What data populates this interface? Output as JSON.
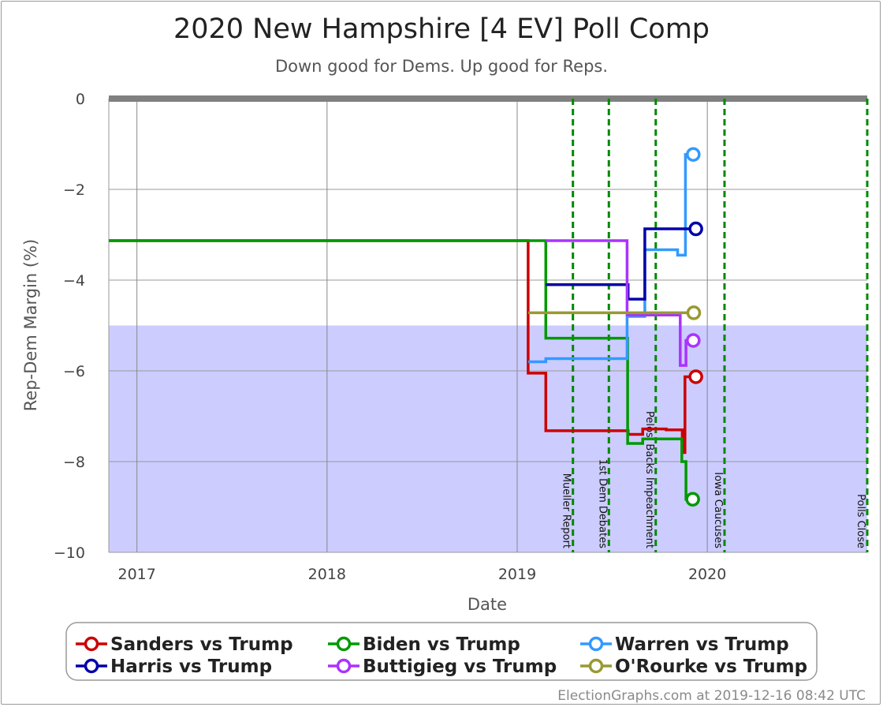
{
  "chart_data": {
    "type": "line",
    "title": "2020 New Hampshire [4 EV] Poll Comp",
    "subtitle": "Down good for Dems. Up good for Reps.",
    "xlabel": "Date",
    "ylabel": "Rep-Dem Margin (%)",
    "xlim": [
      "2016-11-08",
      "2020-11-03"
    ],
    "ylim": [
      -10,
      0
    ],
    "x_ticks": [
      "2017",
      "2018",
      "2019",
      "2020"
    ],
    "y_ticks": [
      0,
      -2,
      -4,
      -6,
      -8,
      -10
    ],
    "shaded_band": {
      "from": -10,
      "to": -5,
      "color": "#ccccff"
    },
    "grid": true,
    "legend_position": "bottom",
    "events": [
      {
        "date": "2019-04-18",
        "label": "Mueller Report"
      },
      {
        "date": "2019-06-26",
        "label": "1st Dem Debates"
      },
      {
        "date": "2019-09-24",
        "label": "Pelosi Backs Impeachment"
      },
      {
        "date": "2020-02-03",
        "label": "Iowa Caucuses"
      },
      {
        "date": "2020-11-03",
        "label": "Polls Close"
      }
    ],
    "series": [
      {
        "name": "Sanders vs Trump",
        "color": "#cc0000",
        "points": [
          [
            "2016-11-08",
            -3.13
          ],
          [
            "2019-01-22",
            -3.13
          ],
          [
            "2019-01-22",
            -6.05
          ],
          [
            "2019-02-25",
            -6.05
          ],
          [
            "2019-02-25",
            -7.32
          ],
          [
            "2019-08-02",
            -7.32
          ],
          [
            "2019-08-02",
            -7.4
          ],
          [
            "2019-08-30",
            -7.4
          ],
          [
            "2019-08-30",
            -7.28
          ],
          [
            "2019-10-14",
            -7.28
          ],
          [
            "2019-10-14",
            -7.3
          ],
          [
            "2019-11-14",
            -7.3
          ],
          [
            "2019-11-14",
            -7.8
          ],
          [
            "2019-11-19",
            -7.8
          ],
          [
            "2019-11-19",
            -6.13
          ],
          [
            "2019-12-10",
            -6.13
          ]
        ]
      },
      {
        "name": "Biden vs Trump",
        "color": "#009900",
        "points": [
          [
            "2016-11-08",
            -3.13
          ],
          [
            "2019-02-25",
            -3.13
          ],
          [
            "2019-02-25",
            -5.28
          ],
          [
            "2019-08-01",
            -5.28
          ],
          [
            "2019-08-01",
            -7.6
          ],
          [
            "2019-08-30",
            -7.6
          ],
          [
            "2019-08-30",
            -7.5
          ],
          [
            "2019-11-13",
            -7.5
          ],
          [
            "2019-11-13",
            -8.0
          ],
          [
            "2019-11-21",
            -8.0
          ],
          [
            "2019-11-21",
            -8.83
          ],
          [
            "2019-12-04",
            -8.83
          ]
        ]
      },
      {
        "name": "Warren vs Trump",
        "color": "#3399ff",
        "points": [
          [
            "2019-01-22",
            -5.8
          ],
          [
            "2019-02-25",
            -5.8
          ],
          [
            "2019-02-25",
            -5.73
          ],
          [
            "2019-07-31",
            -5.73
          ],
          [
            "2019-07-31",
            -4.8
          ],
          [
            "2019-09-03",
            -4.8
          ],
          [
            "2019-09-03",
            -3.33
          ],
          [
            "2019-11-05",
            -3.33
          ],
          [
            "2019-11-05",
            -3.45
          ],
          [
            "2019-11-20",
            -3.45
          ],
          [
            "2019-11-20",
            -1.23
          ],
          [
            "2019-12-05",
            -1.23
          ]
        ]
      },
      {
        "name": "Harris vs Trump",
        "color": "#0000aa",
        "points": [
          [
            "2019-02-25",
            -4.1
          ],
          [
            "2019-08-02",
            -4.1
          ],
          [
            "2019-08-02",
            -4.42
          ],
          [
            "2019-09-03",
            -4.42
          ],
          [
            "2019-09-03",
            -2.87
          ],
          [
            "2019-12-10",
            -2.87
          ]
        ]
      },
      {
        "name": "Buttigieg vs Trump",
        "color": "#aa33ff",
        "points": [
          [
            "2019-02-25",
            -3.13
          ],
          [
            "2019-07-31",
            -3.13
          ],
          [
            "2019-07-31",
            -4.77
          ],
          [
            "2019-11-10",
            -4.77
          ],
          [
            "2019-11-10",
            -5.88
          ],
          [
            "2019-11-21",
            -5.88
          ],
          [
            "2019-11-21",
            -5.33
          ],
          [
            "2019-12-05",
            -5.33
          ]
        ]
      },
      {
        "name": "O'Rourke vs Trump",
        "color": "#999933",
        "points": [
          [
            "2019-01-22",
            -4.72
          ],
          [
            "2019-12-06",
            -4.72
          ]
        ]
      }
    ],
    "end_markers": [
      {
        "series": "Warren vs Trump",
        "date": "2019-12-05",
        "value": -1.23
      },
      {
        "series": "Harris vs Trump",
        "date": "2019-12-10",
        "value": -2.87
      },
      {
        "series": "O'Rourke vs Trump",
        "date": "2019-12-06",
        "value": -4.72
      },
      {
        "series": "Buttigieg vs Trump",
        "date": "2019-12-05",
        "value": -5.33
      },
      {
        "series": "Sanders vs Trump",
        "date": "2019-12-10",
        "value": -6.13
      },
      {
        "series": "Biden vs Trump",
        "date": "2019-12-04",
        "value": -8.83
      }
    ],
    "legend_order": [
      "Sanders vs Trump",
      "Biden vs Trump",
      "Warren vs Trump",
      "Harris vs Trump",
      "Buttigieg vs Trump",
      "O'Rourke vs Trump"
    ]
  },
  "footer": "ElectionGraphs.com at 2019-12-16 08:42 UTC"
}
